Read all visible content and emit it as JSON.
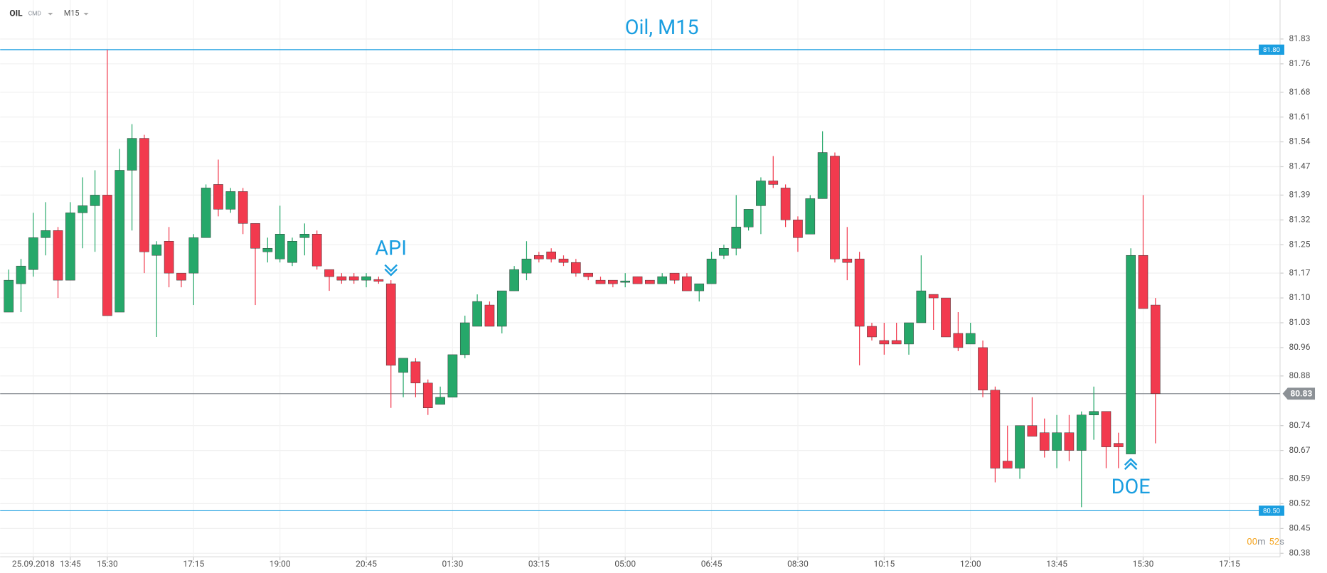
{
  "chart_data": {
    "type": "candlestick",
    "title": "Oil, M15",
    "symbol": "OIL",
    "market": "CMD",
    "timeframe": "M15",
    "up_color": "#26a86a",
    "down_color": "#f23a4e",
    "grid": true,
    "ylim": [
      80.37,
      81.94
    ],
    "yticks": [
      81.83,
      81.76,
      81.68,
      81.61,
      81.54,
      81.47,
      81.39,
      81.32,
      81.25,
      81.17,
      {
        "value": 81.1,
        "label": "81.10"
      },
      81.03,
      80.96,
      80.88,
      80.74,
      80.67,
      80.59,
      80.52,
      80.45,
      80.38
    ],
    "categories": [
      null,
      null,
      "25.09.2018",
      null,
      null,
      "13:45",
      null,
      null,
      "15:30",
      null,
      null,
      null,
      null,
      null,
      null,
      "17:15",
      null,
      null,
      null,
      null,
      null,
      null,
      "19:00",
      null,
      null,
      null,
      null,
      null,
      null,
      "20:45",
      null,
      null,
      null,
      null,
      null,
      null,
      "01:30",
      null,
      null,
      null,
      null,
      null,
      null,
      "03:15",
      null,
      null,
      null,
      null,
      null,
      null,
      "05:00",
      null,
      null,
      null,
      null,
      null,
      null,
      "06:45",
      null,
      null,
      null,
      null,
      null,
      null,
      "08:30",
      null,
      null,
      null,
      null,
      null,
      null,
      "10:15",
      null,
      null,
      null,
      null,
      null,
      null,
      "12:00",
      null,
      null,
      null,
      null,
      null,
      null,
      "13:45",
      null,
      null,
      null,
      null,
      null,
      null,
      "15:30",
      null,
      null,
      null,
      null,
      null,
      null,
      "17:15"
    ],
    "open": [
      81.06,
      81.14,
      81.18,
      81.27,
      81.29,
      81.15,
      81.34,
      81.36,
      81.39,
      81.06,
      81.46,
      81.55,
      81.22,
      81.26,
      81.17,
      81.17,
      81.27,
      81.42,
      81.35,
      81.4,
      81.31,
      81.23,
      81.21,
      81.2,
      81.27,
      81.28,
      81.18,
      81.16,
      81.16,
      81.15,
      81.152,
      81.14,
      80.89,
      80.92,
      80.86,
      80.8,
      80.82,
      80.94,
      81.02,
      81.08,
      81.02,
      81.12,
      81.17,
      81.22,
      81.23,
      81.21,
      81.2,
      81.17,
      81.15,
      81.15,
      81.144,
      81.16,
      81.15,
      81.14,
      81.17,
      81.16,
      81.12,
      81.14,
      81.22,
      81.24,
      81.3,
      81.36,
      81.43,
      81.41,
      81.32,
      81.28,
      81.38,
      81.5,
      81.21,
      81.21,
      81.02,
      80.98,
      80.98,
      80.97,
      81.03,
      81.11,
      81.1,
      81.0,
      80.97,
      80.96,
      80.84,
      80.64,
      80.62,
      80.74,
      80.72,
      80.67,
      80.72,
      80.67,
      80.77,
      80.78,
      80.69,
      80.66,
      81.22,
      81.08,
      null,
      null,
      null,
      null,
      null,
      null
    ],
    "high": [
      81.18,
      81.21,
      81.34,
      81.37,
      81.3,
      81.37,
      81.44,
      81.46,
      81.8,
      81.52,
      81.59,
      81.56,
      81.26,
      81.3,
      81.17,
      81.28,
      81.42,
      81.49,
      81.41,
      81.41,
      81.31,
      81.27,
      81.36,
      81.27,
      81.31,
      81.29,
      81.18,
      81.17,
      81.17,
      81.17,
      81.16,
      81.15,
      80.93,
      80.93,
      80.87,
      80.85,
      80.94,
      81.05,
      81.11,
      81.09,
      81.12,
      81.19,
      81.26,
      81.23,
      81.24,
      81.22,
      81.21,
      81.17,
      81.16,
      81.15,
      81.17,
      81.16,
      81.15,
      81.17,
      81.17,
      81.17,
      81.14,
      81.23,
      81.25,
      81.39,
      81.35,
      81.44,
      81.5,
      81.42,
      81.33,
      81.39,
      81.57,
      81.51,
      81.3,
      81.23,
      81.03,
      81.03,
      81.03,
      81.03,
      81.22,
      81.11,
      81.1,
      81.06,
      81.03,
      80.98,
      80.85,
      80.74,
      80.74,
      80.82,
      80.76,
      80.77,
      80.77,
      80.78,
      80.85,
      80.78,
      80.72,
      81.24,
      81.39,
      81.1,
      null,
      null,
      null,
      null,
      null,
      null
    ],
    "low": [
      81.06,
      81.06,
      81.16,
      81.22,
      81.1,
      81.15,
      81.24,
      81.23,
      81.05,
      81.06,
      81.29,
      81.17,
      80.99,
      81.13,
      81.13,
      81.08,
      81.27,
      81.33,
      81.34,
      81.28,
      81.08,
      81.2,
      81.2,
      81.19,
      81.22,
      81.18,
      81.12,
      81.14,
      81.14,
      81.13,
      81.14,
      80.79,
      80.82,
      80.82,
      80.77,
      80.8,
      80.82,
      80.93,
      81.02,
      81.02,
      81.0,
      81.12,
      81.15,
      81.2,
      81.2,
      81.19,
      81.16,
      81.15,
      81.14,
      81.13,
      81.13,
      81.14,
      81.14,
      81.14,
      81.14,
      81.12,
      81.09,
      81.14,
      81.21,
      81.22,
      81.29,
      81.28,
      81.41,
      81.3,
      81.23,
      81.28,
      81.38,
      81.2,
      81.15,
      80.91,
      80.98,
      80.94,
      80.97,
      80.94,
      81.03,
      81.01,
      80.99,
      80.95,
      80.97,
      80.82,
      80.58,
      80.62,
      80.59,
      80.71,
      80.65,
      80.62,
      80.64,
      80.51,
      80.7,
      80.62,
      80.62,
      80.66,
      81.07,
      80.69,
      null,
      null,
      null,
      null,
      null,
      null
    ],
    "close": [
      81.15,
      81.19,
      81.27,
      81.29,
      81.15,
      81.34,
      81.36,
      81.39,
      81.05,
      81.46,
      81.55,
      81.23,
      81.25,
      81.17,
      81.15,
      81.27,
      81.41,
      81.35,
      81.4,
      81.31,
      81.24,
      81.24,
      81.28,
      81.26,
      81.28,
      81.19,
      81.16,
      81.15,
      81.15,
      81.16,
      81.147,
      80.91,
      80.93,
      80.86,
      80.79,
      80.82,
      80.94,
      81.03,
      81.09,
      81.02,
      81.12,
      81.18,
      81.21,
      81.21,
      81.21,
      81.2,
      81.17,
      81.16,
      81.14,
      81.14,
      81.148,
      81.14,
      81.14,
      81.16,
      81.15,
      81.12,
      81.14,
      81.21,
      81.24,
      81.3,
      81.35,
      81.43,
      81.42,
      81.32,
      81.27,
      81.38,
      81.51,
      81.21,
      81.2,
      81.02,
      80.99,
      80.97,
      80.97,
      81.03,
      81.12,
      81.1,
      80.99,
      80.96,
      81.0,
      80.84,
      80.62,
      80.62,
      80.74,
      80.71,
      80.67,
      80.72,
      80.67,
      80.77,
      80.78,
      80.68,
      80.68,
      81.22,
      81.07,
      80.83,
      null,
      null,
      null,
      null,
      null,
      null
    ],
    "levels": [
      {
        "value": 81.8,
        "label": "81.80",
        "color": "#1a9ee0"
      },
      {
        "value": 80.5,
        "label": "80.50",
        "color": "#1a9ee0"
      },
      {
        "value": 80.83,
        "label": "80.83",
        "color": "#8c9196"
      }
    ],
    "annotations": [
      {
        "text": "API",
        "direction": "down"
      },
      {
        "text": "DOE",
        "direction": "up"
      }
    ],
    "timer": {
      "minutes": "00",
      "m": "m",
      "seconds": "52",
      "s": "s"
    }
  }
}
